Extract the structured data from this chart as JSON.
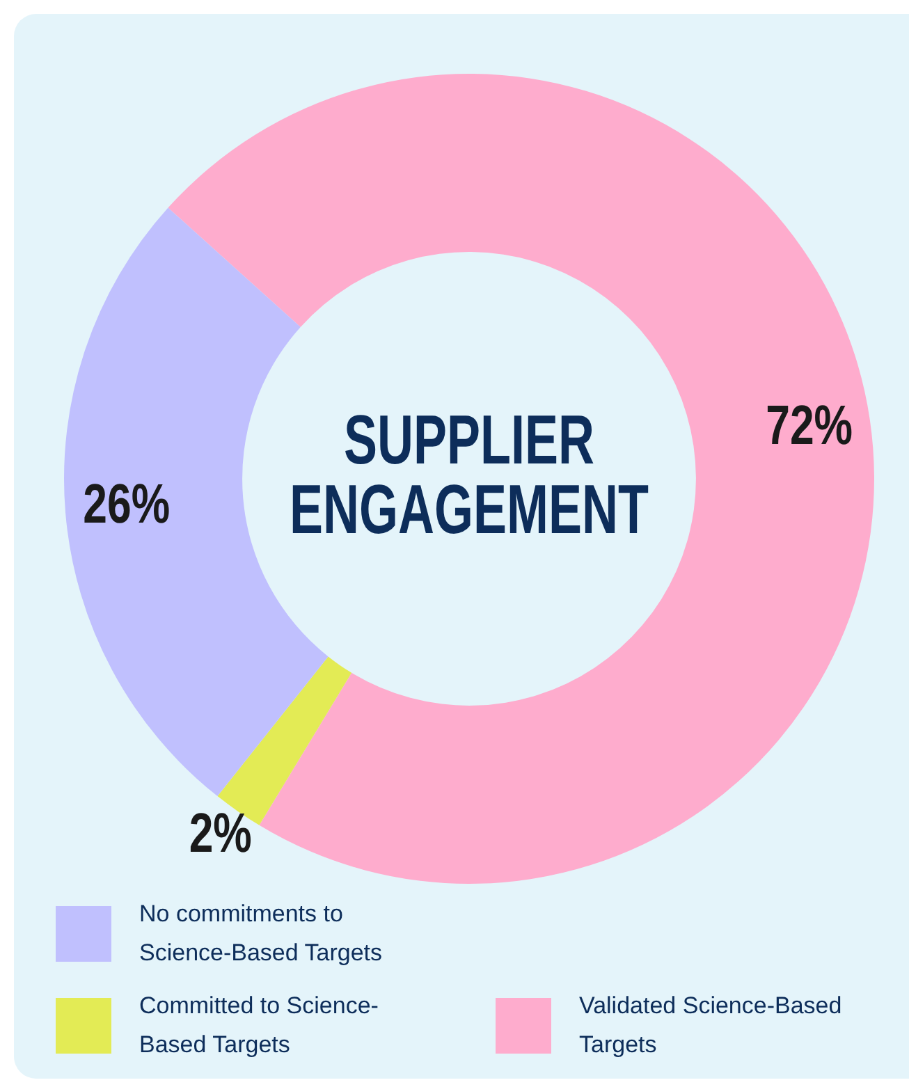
{
  "chart_data": {
    "type": "donut",
    "title": "SUPPLIER ENGAGEMENT",
    "categories": [
      "No commitments to Science-Based Targets",
      "Committed to Science-Based Targets",
      "Validated Science-Based Targets"
    ],
    "values": [
      26,
      2,
      72
    ],
    "colors": [
      "#c0c0fe",
      "#e3eb55",
      "#feaccd"
    ],
    "value_labels": [
      "26%",
      "2%",
      "72%"
    ],
    "legend": "bottom"
  }
}
